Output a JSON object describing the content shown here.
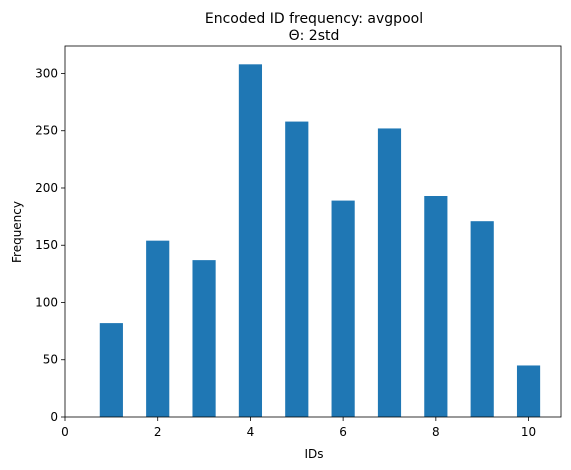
{
  "chart_data": {
    "type": "bar",
    "title": "Encoded ID frequency: avgpool",
    "subtitle": "Θ: 2std",
    "xlabel": "IDs",
    "ylabel": "Frequency",
    "xlim": [
      0,
      10.7
    ],
    "ylim": [
      0,
      324
    ],
    "xticks": [
      0,
      2,
      4,
      6,
      8,
      10
    ],
    "yticks": [
      0,
      50,
      100,
      150,
      200,
      250,
      300
    ],
    "bar_width": 0.5,
    "color": "#1f77b4",
    "grid": false,
    "bars": [
      {
        "x": 1,
        "value": 82
      },
      {
        "x": 2,
        "value": 154
      },
      {
        "x": 3,
        "value": 137
      },
      {
        "x": 4,
        "value": 308
      },
      {
        "x": 5,
        "value": 258
      },
      {
        "x": 6,
        "value": 189
      },
      {
        "x": 7,
        "value": 252
      },
      {
        "x": 8,
        "value": 193
      },
      {
        "x": 9,
        "value": 171
      },
      {
        "x": 10,
        "value": 45
      }
    ]
  }
}
